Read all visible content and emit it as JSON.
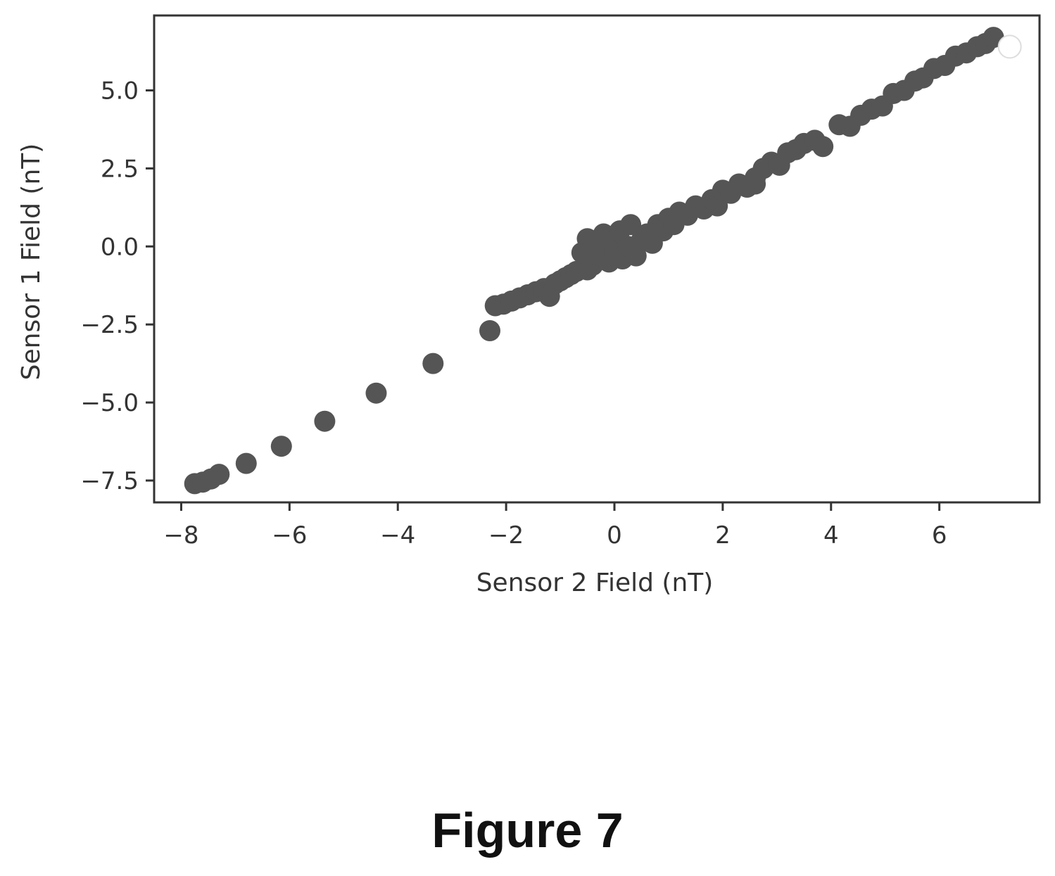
{
  "caption": "Figure 7",
  "colors": {
    "marker": "#555555",
    "frame": "#333333",
    "background": "#ffffff"
  },
  "chart_data": {
    "type": "scatter",
    "title": "",
    "xlabel": "Sensor 2 Field (nT)",
    "ylabel": "Sensor 1 Field (nT)",
    "xlim": [
      -8.5,
      7.85
    ],
    "ylim": [
      -8.2,
      7.4
    ],
    "x_ticks": [
      -8,
      -6,
      -4,
      -2,
      0,
      2,
      4,
      6
    ],
    "x_tick_labels": [
      "−8",
      "−6",
      "−4",
      "−2",
      "0",
      "2",
      "4",
      "6"
    ],
    "y_ticks": [
      -7.5,
      -5.0,
      -2.5,
      0.0,
      2.5,
      5.0
    ],
    "y_tick_labels": [
      "−7.5",
      "−5.0",
      "−2.5",
      "0.0",
      "2.5",
      "5.0"
    ],
    "grid": false,
    "legend": "none",
    "points": [
      [
        -7.75,
        -7.6
      ],
      [
        -7.6,
        -7.55
      ],
      [
        -7.45,
        -7.45
      ],
      [
        -7.3,
        -7.3
      ],
      [
        -6.8,
        -6.95
      ],
      [
        -6.15,
        -6.4
      ],
      [
        -5.35,
        -5.6
      ],
      [
        -4.4,
        -4.7
      ],
      [
        -3.35,
        -3.75
      ],
      [
        -2.3,
        -2.7
      ],
      [
        -2.2,
        -1.9
      ],
      [
        -2.05,
        -1.85
      ],
      [
        -1.9,
        -1.75
      ],
      [
        -1.75,
        -1.65
      ],
      [
        -1.6,
        -1.55
      ],
      [
        -1.45,
        -1.45
      ],
      [
        -1.3,
        -1.35
      ],
      [
        -1.2,
        -1.6
      ],
      [
        -1.1,
        -1.2
      ],
      [
        -1.0,
        -1.1
      ],
      [
        -0.9,
        -1.0
      ],
      [
        -0.8,
        -0.9
      ],
      [
        -0.7,
        -0.8
      ],
      [
        -0.6,
        -0.2
      ],
      [
        -0.5,
        0.25
      ],
      [
        -0.5,
        -0.75
      ],
      [
        -0.4,
        0.1
      ],
      [
        -0.4,
        -0.6
      ],
      [
        -0.3,
        -0.3
      ],
      [
        -0.2,
        0.0
      ],
      [
        -0.2,
        0.4
      ],
      [
        -0.1,
        -0.5
      ],
      [
        0.0,
        0.2
      ],
      [
        0.0,
        -0.2
      ],
      [
        0.1,
        0.5
      ],
      [
        0.15,
        -0.4
      ],
      [
        0.25,
        0.0
      ],
      [
        0.3,
        0.7
      ],
      [
        0.4,
        -0.3
      ],
      [
        0.5,
        0.2
      ],
      [
        0.6,
        0.4
      ],
      [
        0.7,
        0.1
      ],
      [
        0.8,
        0.7
      ],
      [
        0.9,
        0.5
      ],
      [
        1.0,
        0.9
      ],
      [
        1.1,
        0.7
      ],
      [
        1.2,
        1.1
      ],
      [
        1.35,
        1.0
      ],
      [
        1.5,
        1.3
      ],
      [
        1.65,
        1.2
      ],
      [
        1.8,
        1.5
      ],
      [
        1.9,
        1.3
      ],
      [
        2.0,
        1.8
      ],
      [
        2.15,
        1.7
      ],
      [
        2.3,
        2.0
      ],
      [
        2.45,
        1.9
      ],
      [
        2.6,
        2.2
      ],
      [
        2.6,
        2.0
      ],
      [
        2.75,
        2.5
      ],
      [
        2.9,
        2.7
      ],
      [
        3.05,
        2.6
      ],
      [
        3.2,
        3.0
      ],
      [
        3.35,
        3.1
      ],
      [
        3.5,
        3.3
      ],
      [
        3.7,
        3.4
      ],
      [
        3.85,
        3.2
      ],
      [
        4.15,
        3.9
      ],
      [
        4.35,
        3.85
      ],
      [
        4.55,
        4.2
      ],
      [
        4.75,
        4.4
      ],
      [
        4.95,
        4.5
      ],
      [
        5.15,
        4.9
      ],
      [
        5.35,
        5.0
      ],
      [
        5.55,
        5.3
      ],
      [
        5.7,
        5.4
      ],
      [
        5.9,
        5.7
      ],
      [
        6.1,
        5.8
      ],
      [
        6.3,
        6.1
      ],
      [
        6.5,
        6.2
      ],
      [
        6.7,
        6.4
      ],
      [
        6.85,
        6.5
      ],
      [
        7.0,
        6.7
      ]
    ],
    "outlier_open_point": [
      7.3,
      6.4
    ]
  }
}
